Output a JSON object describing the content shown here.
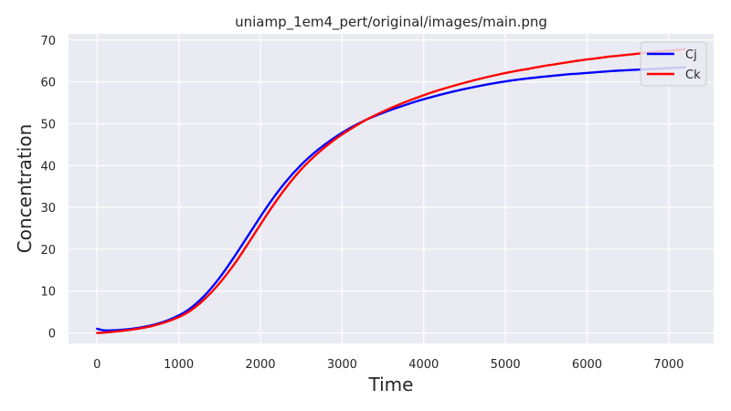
{
  "chart_data": {
    "type": "line",
    "title": "uniamp_1em4_pert/original/images/main.png",
    "xlabel": "Time",
    "ylabel": "Concentration",
    "xlim": [
      -350,
      7550
    ],
    "ylim": [
      -2.5,
      71.5
    ],
    "xticks": [
      0,
      1000,
      2000,
      3000,
      4000,
      5000,
      6000,
      7000
    ],
    "yticks": [
      0,
      10,
      20,
      30,
      40,
      50,
      60,
      70
    ],
    "grid": true,
    "legend_position": "top-right",
    "background": "#eaeaf2",
    "series": [
      {
        "name": "Cj",
        "color": "#0000ff",
        "x": [
          0,
          100,
          300,
          500,
          700,
          900,
          1100,
          1300,
          1500,
          1700,
          1900,
          2100,
          2300,
          2500,
          2700,
          2900,
          3100,
          3300,
          3500,
          3700,
          3900,
          4100,
          4300,
          4500,
          4700,
          4900,
          5100,
          5300,
          5500,
          5700,
          5900,
          6100,
          6300,
          6500,
          6700,
          6900,
          7100,
          7200
        ],
        "y": [
          1.0,
          0.6,
          0.75,
          1.2,
          2.0,
          3.3,
          5.3,
          8.6,
          13.2,
          18.8,
          24.8,
          30.7,
          35.9,
          40.2,
          43.7,
          46.6,
          49.0,
          51.0,
          52.6,
          54.0,
          55.3,
          56.4,
          57.4,
          58.3,
          59.1,
          59.8,
          60.4,
          60.9,
          61.3,
          61.7,
          62.0,
          62.3,
          62.6,
          62.8,
          63.0,
          63.2,
          63.4,
          63.5
        ]
      },
      {
        "name": "Ck",
        "color": "#ff0000",
        "x": [
          0,
          100,
          300,
          500,
          700,
          900,
          1100,
          1300,
          1500,
          1700,
          1900,
          2100,
          2300,
          2500,
          2700,
          2900,
          3100,
          3300,
          3500,
          3700,
          3900,
          4100,
          4300,
          4500,
          4700,
          4900,
          5100,
          5300,
          5500,
          5700,
          5900,
          6100,
          6300,
          6500,
          6700,
          6900,
          7100,
          7200
        ],
        "y": [
          0.0,
          0.1,
          0.5,
          1.0,
          1.8,
          3.0,
          4.8,
          7.8,
          11.9,
          17.0,
          22.9,
          28.9,
          34.4,
          39.1,
          42.9,
          46.1,
          48.7,
          51.0,
          52.9,
          54.6,
          56.1,
          57.5,
          58.7,
          59.8,
          60.8,
          61.7,
          62.5,
          63.2,
          63.9,
          64.5,
          65.1,
          65.6,
          66.1,
          66.5,
          66.9,
          67.3,
          67.6,
          67.8
        ]
      }
    ]
  }
}
